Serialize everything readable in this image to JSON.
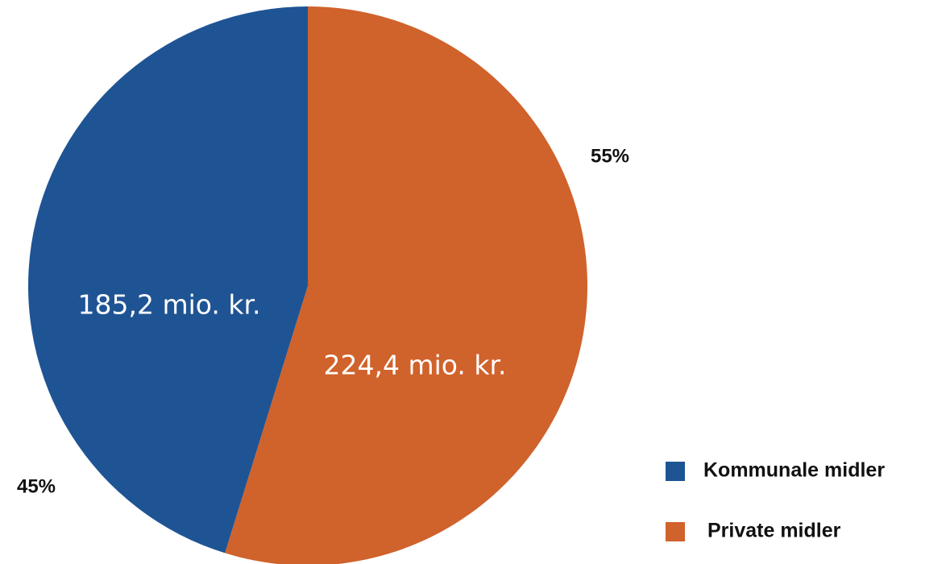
{
  "chart_data": {
    "type": "pie",
    "categories": [
      "Kommunale midler",
      "Private midler"
    ],
    "values": [
      185.2,
      224.4
    ],
    "value_labels": [
      "185,2 mio. kr.",
      "224,4 mio. kr."
    ],
    "percentages": [
      45,
      55
    ],
    "percentage_labels": [
      "45%",
      "55%"
    ],
    "colors": [
      "#1f5494",
      "#d0622c"
    ],
    "legend": "bottom-right"
  }
}
